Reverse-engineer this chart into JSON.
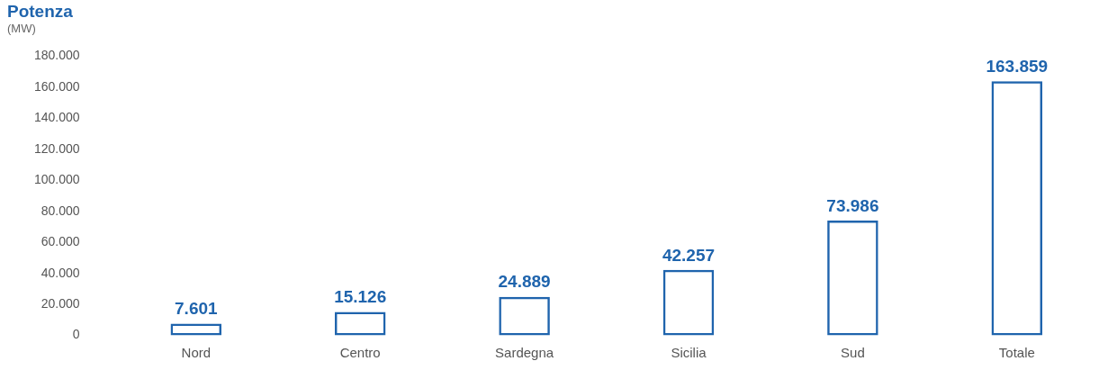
{
  "chart_data": {
    "type": "bar",
    "title": "Potenza",
    "subtitle": "(MW)",
    "categories": [
      "Nord",
      "Centro",
      "Sardegna",
      "Sicilia",
      "Sud",
      "Totale"
    ],
    "values": [
      7601,
      15126,
      24889,
      42257,
      73986,
      163859
    ],
    "value_labels": [
      "7.601",
      "15.126",
      "24.889",
      "42.257",
      "73.986",
      "163.859"
    ],
    "color": "#1f64ad",
    "ylim": [
      0,
      180000
    ],
    "yticks": [
      {
        "value": 0,
        "label": "0"
      },
      {
        "value": 20000,
        "label": "20.000"
      },
      {
        "value": 40000,
        "label": "40.000"
      },
      {
        "value": 60000,
        "label": "60.000"
      },
      {
        "value": 80000,
        "label": "80.000"
      },
      {
        "value": 100000,
        "label": "100.000"
      },
      {
        "value": 120000,
        "label": "120.000"
      },
      {
        "value": 140000,
        "label": "140.000"
      },
      {
        "value": 160000,
        "label": "160.000"
      },
      {
        "value": 180000,
        "label": "180.000"
      }
    ]
  }
}
